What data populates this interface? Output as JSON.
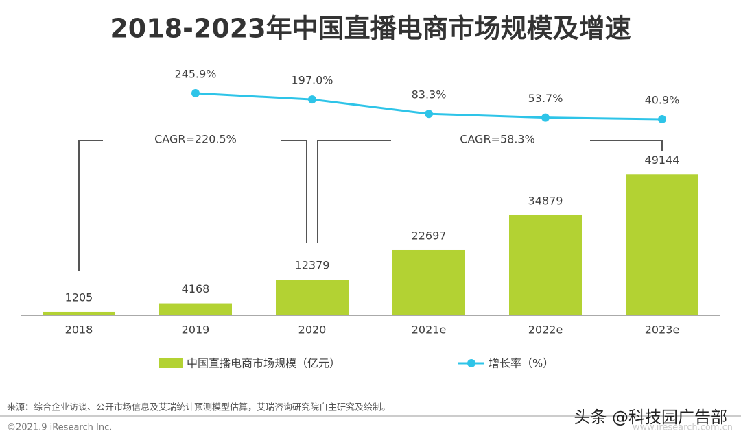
{
  "chart_data": {
    "type": "bar",
    "title": "2018-2023年中国直播电商市场规模及增速",
    "categories": [
      "2018",
      "2019",
      "2020",
      "2021e",
      "2022e",
      "2023e"
    ],
    "series": [
      {
        "name": "中国直播电商市场规模（亿元）",
        "type": "bar",
        "color": "#b3d233",
        "values": [
          1205,
          4168,
          12379,
          22697,
          34879,
          49144
        ]
      },
      {
        "name": "增长率（%）",
        "type": "line",
        "axis": "y2",
        "color": "#2ec4e8",
        "values": [
          null,
          245.9,
          197.0,
          83.3,
          53.7,
          40.9
        ],
        "value_labels": [
          null,
          "245.9%",
          "197.0%",
          "83.3%",
          "53.7%",
          "40.9%"
        ]
      }
    ],
    "ylim": [
      0,
      86000
    ],
    "y2lim": [
      -1500,
      440
    ],
    "annotations": [
      "CAGR=220.5%",
      "CAGR=58.3%"
    ],
    "source": "来源：综合企业访谈、公开市场信息及艾瑞统计预测模型估算，艾瑞咨询研究院自主研究及绘制。",
    "copyright": "©2021.9 iResearch Inc.",
    "website": "www.iresearch.com.cn",
    "watermark": "头条 @科技园广告部"
  }
}
